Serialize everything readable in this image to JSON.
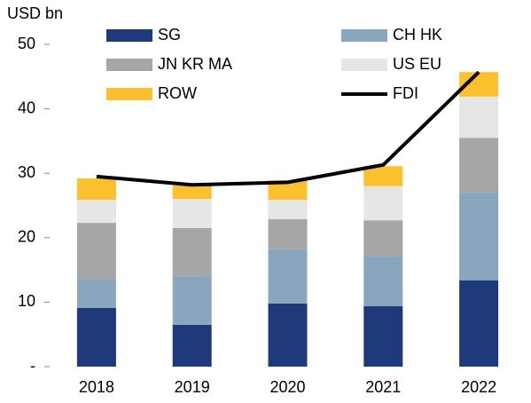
{
  "chart_data": {
    "type": "bar",
    "stacked": true,
    "ylabel": "USD bn",
    "categories": [
      "2018",
      "2019",
      "2020",
      "2021",
      "2022"
    ],
    "series": [
      {
        "name": "SG",
        "color": "#1f3a7a",
        "values": [
          9.1,
          6.5,
          9.8,
          9.4,
          13.4
        ]
      },
      {
        "name": "CH HK",
        "color": "#8aa6bf",
        "values": [
          4.4,
          7.5,
          8.4,
          7.8,
          13.7
        ]
      },
      {
        "name": "JN KR MA",
        "color": "#a6a6a6",
        "values": [
          8.8,
          7.5,
          4.7,
          5.5,
          8.4
        ]
      },
      {
        "name": "US EU",
        "color": "#e6e6e6",
        "values": [
          3.6,
          4.5,
          3.0,
          5.3,
          6.4
        ]
      },
      {
        "name": "ROW",
        "color": "#fbc02d",
        "values": [
          3.3,
          2.1,
          3.0,
          3.1,
          3.8
        ]
      },
      {
        "name": "FDI",
        "type": "line",
        "color": "#000000",
        "values": [
          29.5,
          28.2,
          28.6,
          31.3,
          45.7
        ]
      }
    ],
    "ylim": [
      0,
      50
    ],
    "yticks": [
      {
        "value": 0,
        "label": "-"
      },
      10,
      20,
      30,
      40,
      50
    ],
    "grid": false
  }
}
